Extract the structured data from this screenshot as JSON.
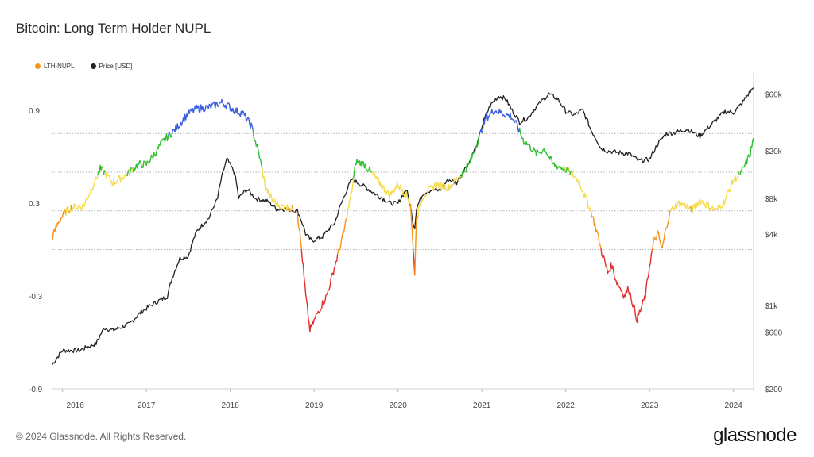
{
  "header": {
    "title": "Bitcoin: Long Term Holder NUPL"
  },
  "legend": [
    {
      "label": "LTH-NUPL",
      "color": "#f7931a"
    },
    {
      "label": "Price [USD]",
      "color": "#222222"
    }
  ],
  "footer": {
    "copyright": "© 2024 Glassnode. All Rights Reserved.",
    "brand": "glassnode"
  },
  "chart_data": {
    "type": "line",
    "title": "Bitcoin: Long Term Holder NUPL",
    "x_range": [
      2015.88,
      2024.24
    ],
    "x_ticks": [
      "2016",
      "2017",
      "2018",
      "2019",
      "2020",
      "2021",
      "2022",
      "2023",
      "2024"
    ],
    "y_left": {
      "ticks": [
        "0.9",
        "0.3",
        "-0.3",
        "-0.9"
      ],
      "range": [
        -0.9,
        1.1
      ]
    },
    "y_right": {
      "ticks": [
        "$200",
        "$600",
        "$1k",
        "$4k",
        "$8k",
        "$20k",
        "$60k"
      ],
      "range": [
        200,
        80000
      ],
      "scale": "log"
    },
    "thresholds": [
      0.0,
      0.25,
      0.5,
      0.75
    ],
    "zone_colors": {
      "capitulation": "#e03030",
      "hope_fear": "#f7931a",
      "optimism": "#f4dc4c",
      "belief": "#2fc12f",
      "euphoria": "#3b5fe0"
    },
    "series": [
      {
        "name": "LTH-NUPL",
        "axis": "left",
        "x": [
          2015.88,
          2015.95,
          2016.05,
          2016.1,
          2016.25,
          2016.35,
          2016.45,
          2016.5,
          2016.6,
          2016.75,
          2016.9,
          2017.0,
          2017.1,
          2017.2,
          2017.35,
          2017.5,
          2017.6,
          2017.75,
          2017.9,
          2017.97,
          2018.05,
          2018.15,
          2018.25,
          2018.35,
          2018.42,
          2018.5,
          2018.6,
          2018.7,
          2018.8,
          2018.85,
          2018.9,
          2018.95,
          2019.05,
          2019.15,
          2019.25,
          2019.35,
          2019.45,
          2019.5,
          2019.6,
          2019.75,
          2019.9,
          2020.0,
          2020.1,
          2020.15,
          2020.18,
          2020.2,
          2020.22,
          2020.3,
          2020.45,
          2020.6,
          2020.75,
          2020.85,
          2020.95,
          2021.05,
          2021.15,
          2021.25,
          2021.35,
          2021.42,
          2021.5,
          2021.55,
          2021.65,
          2021.75,
          2021.85,
          2021.95,
          2022.05,
          2022.15,
          2022.3,
          2022.38,
          2022.42,
          2022.45,
          2022.5,
          2022.55,
          2022.6,
          2022.7,
          2022.75,
          2022.8,
          2022.85,
          2022.9,
          2022.95,
          2023.0,
          2023.05,
          2023.1,
          2023.15,
          2023.2,
          2023.25,
          2023.35,
          2023.45,
          2023.5,
          2023.6,
          2023.7,
          2023.8,
          2023.9,
          2024.0,
          2024.1,
          2024.2,
          2024.24
        ],
        "values": [
          0.08,
          0.18,
          0.25,
          0.27,
          0.28,
          0.4,
          0.52,
          0.5,
          0.43,
          0.48,
          0.55,
          0.55,
          0.62,
          0.7,
          0.78,
          0.88,
          0.91,
          0.92,
          0.95,
          0.93,
          0.9,
          0.88,
          0.8,
          0.6,
          0.4,
          0.32,
          0.28,
          0.27,
          0.25,
          0.0,
          -0.3,
          -0.52,
          -0.4,
          -0.3,
          -0.1,
          0.1,
          0.38,
          0.57,
          0.55,
          0.45,
          0.35,
          0.42,
          0.35,
          0.3,
          0.0,
          -0.15,
          0.2,
          0.35,
          0.42,
          0.4,
          0.48,
          0.55,
          0.7,
          0.85,
          0.9,
          0.88,
          0.86,
          0.8,
          0.7,
          0.68,
          0.62,
          0.65,
          0.55,
          0.53,
          0.5,
          0.45,
          0.25,
          0.1,
          0.0,
          -0.05,
          -0.15,
          -0.1,
          -0.2,
          -0.3,
          -0.25,
          -0.35,
          -0.45,
          -0.38,
          -0.3,
          -0.1,
          0.05,
          0.1,
          0.0,
          0.15,
          0.25,
          0.3,
          0.28,
          0.25,
          0.32,
          0.28,
          0.25,
          0.32,
          0.45,
          0.5,
          0.62,
          0.72
        ]
      },
      {
        "name": "Price [USD]",
        "axis": "right",
        "x": [
          2015.88,
          2016.0,
          2016.2,
          2016.4,
          2016.5,
          2016.6,
          2016.8,
          2016.95,
          2017.1,
          2017.25,
          2017.4,
          2017.5,
          2017.6,
          2017.75,
          2017.85,
          2017.96,
          2018.05,
          2018.1,
          2018.2,
          2018.3,
          2018.45,
          2018.55,
          2018.65,
          2018.8,
          2018.9,
          2018.97,
          2019.1,
          2019.25,
          2019.35,
          2019.45,
          2019.5,
          2019.6,
          2019.75,
          2019.9,
          2020.0,
          2020.1,
          2020.18,
          2020.2,
          2020.22,
          2020.3,
          2020.4,
          2020.5,
          2020.6,
          2020.7,
          2020.85,
          2020.95,
          2021.0,
          2021.1,
          2021.2,
          2021.28,
          2021.35,
          2021.45,
          2021.55,
          2021.65,
          2021.8,
          2021.9,
          2022.0,
          2022.1,
          2022.2,
          2022.3,
          2022.42,
          2022.5,
          2022.6,
          2022.75,
          2022.87,
          2023.0,
          2023.1,
          2023.2,
          2023.3,
          2023.45,
          2023.6,
          2023.75,
          2023.9,
          2024.0,
          2024.1,
          2024.2,
          2024.24
        ],
        "values": [
          320,
          420,
          420,
          480,
          650,
          620,
          700,
          900,
          1050,
          1200,
          2500,
          2600,
          4200,
          5500,
          8000,
          17000,
          13000,
          8000,
          9500,
          8000,
          7500,
          6500,
          6500,
          6300,
          4000,
          3500,
          3800,
          5000,
          8000,
          11500,
          11000,
          10000,
          8500,
          7300,
          7200,
          9500,
          5000,
          4500,
          6500,
          8800,
          9400,
          9300,
          11500,
          10800,
          16000,
          23000,
          32000,
          48000,
          58000,
          55000,
          45000,
          35000,
          38000,
          47000,
          60000,
          55000,
          43000,
          40000,
          44000,
          30000,
          21000,
          20000,
          19500,
          19000,
          16500,
          17000,
          23000,
          28000,
          28500,
          30500,
          26500,
          34000,
          43000,
          42000,
          50000,
          63000,
          68000
        ]
      }
    ]
  }
}
